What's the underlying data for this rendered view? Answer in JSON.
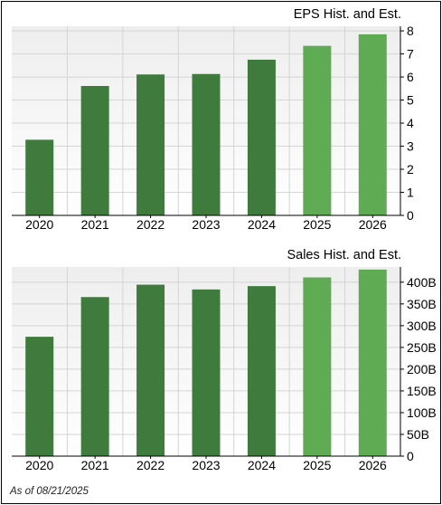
{
  "footer": {
    "as_of": "As of 08/21/2025"
  },
  "colors": {
    "historical": "#3e7b3c",
    "estimate": "#5eab54",
    "grid": "#d4d4d4",
    "plot_bg_top": "#eeeeee",
    "plot_bg_bottom": "#ffffff"
  },
  "chart_data": [
    {
      "id": "eps",
      "type": "bar",
      "title": "EPS Hist. and Est.",
      "categories": [
        "2020",
        "2021",
        "2022",
        "2023",
        "2024",
        "2025",
        "2026"
      ],
      "values": [
        3.28,
        5.61,
        6.11,
        6.13,
        6.75,
        7.35,
        7.85
      ],
      "estimate_from_index": 5,
      "ylim": [
        0,
        8.2
      ],
      "yticks": [
        0,
        1,
        2,
        3,
        4,
        5,
        6,
        7,
        8
      ],
      "ytick_labels": [
        "0",
        "1",
        "2",
        "3",
        "4",
        "5",
        "6",
        "7",
        "8"
      ],
      "axis_side": "right",
      "grid": true
    },
    {
      "id": "sales",
      "type": "bar",
      "title": "Sales Hist. and Est.",
      "categories": [
        "2020",
        "2021",
        "2022",
        "2023",
        "2024",
        "2025",
        "2026"
      ],
      "values": [
        274.5,
        365.8,
        394.3,
        383.3,
        391.0,
        411.0,
        429.0
      ],
      "unit": "B",
      "estimate_from_index": 5,
      "ylim": [
        0,
        435
      ],
      "yticks": [
        0,
        50,
        100,
        150,
        200,
        250,
        300,
        350,
        400
      ],
      "ytick_labels": [
        "0",
        "50B",
        "100B",
        "150B",
        "200B",
        "250B",
        "300B",
        "350B",
        "400B"
      ],
      "axis_side": "right",
      "grid": true
    }
  ]
}
